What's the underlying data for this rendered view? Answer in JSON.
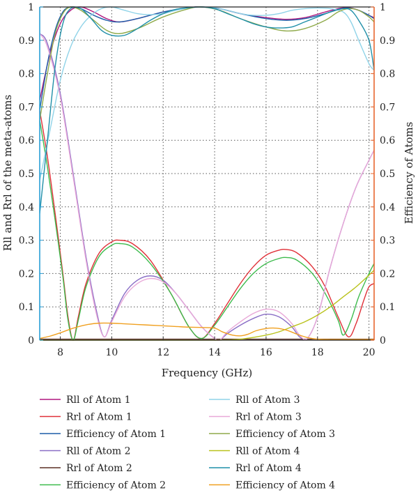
{
  "chart_data": {
    "type": "line",
    "xlabel": "Frequency (GHz)",
    "ylabel_left": "Rll and Rrl of the meta-atoms",
    "ylabel_right": "Efficiency of Atoms",
    "xlim": [
      7.2,
      20.2
    ],
    "ylim": [
      0,
      1
    ],
    "y2lim": [
      0,
      1
    ],
    "x_ticks": [
      "8",
      "10",
      "12",
      "14",
      "16",
      "18",
      "20"
    ],
    "y_ticks": [
      "0",
      "0.1",
      "0.2",
      "0.3",
      "0.4",
      "0.5",
      "0.6",
      "0.7",
      "0.8",
      "0.9",
      "1"
    ],
    "y2_ticks": [
      "0",
      "0.1",
      "0.2",
      "0.3",
      "0.4",
      "0.5",
      "0.6",
      "0.7",
      "0.8",
      "0.9",
      "1"
    ],
    "grid": true,
    "legend_position": "bottom",
    "left_axis_color": "#2a9fd6",
    "right_axis_color": "#e8662e",
    "series": [
      {
        "name": "Rll of Atom 1",
        "color": "#b0177e",
        "x": [
          7.2,
          7.6,
          8.0,
          8.4,
          8.8,
          9.3,
          9.8,
          10.3,
          11.0,
          12.0,
          13.0,
          13.5,
          14.2,
          15.0,
          16.0,
          16.8,
          17.5,
          18.3,
          18.8,
          19.2,
          19.6,
          20.0,
          20.2
        ],
        "y": [
          0.72,
          0.86,
          0.95,
          0.99,
          1.0,
          0.985,
          0.965,
          0.955,
          0.965,
          0.985,
          0.998,
          1.0,
          0.995,
          0.98,
          0.968,
          0.963,
          0.968,
          0.985,
          0.995,
          0.998,
          0.99,
          0.975,
          0.968
        ]
      },
      {
        "name": "Rrl of Atom 1",
        "color": "#e03038",
        "x": [
          7.2,
          7.5,
          7.8,
          8.1,
          8.3,
          8.5,
          8.7,
          9.0,
          9.5,
          10.0,
          10.3,
          10.8,
          11.5,
          12.3,
          13.0,
          13.5,
          14.0,
          14.5,
          15.0,
          15.5,
          16.0,
          16.5,
          16.8,
          17.2,
          17.8,
          18.3,
          18.8,
          19.2,
          19.5,
          19.8,
          20.0,
          20.2
        ],
        "y": [
          0.69,
          0.55,
          0.38,
          0.2,
          0.07,
          0.0,
          0.07,
          0.17,
          0.26,
          0.295,
          0.3,
          0.29,
          0.24,
          0.14,
          0.04,
          0.005,
          0.05,
          0.11,
          0.17,
          0.22,
          0.255,
          0.27,
          0.272,
          0.262,
          0.22,
          0.16,
          0.07,
          0.01,
          0.05,
          0.12,
          0.16,
          0.17
        ]
      },
      {
        "name": "Efficiency of Atom 1",
        "color": "#1c5da8",
        "x": [
          7.2,
          7.5,
          7.8,
          8.1,
          8.4,
          8.8,
          9.3,
          9.8,
          10.3,
          11.0,
          12.0,
          13.0,
          13.5,
          14.2,
          15.0,
          16.0,
          16.8,
          17.5,
          18.3,
          18.8,
          19.2,
          19.6,
          20.0,
          20.2
        ],
        "y": [
          0.69,
          0.83,
          0.93,
          0.985,
          1.0,
          0.995,
          0.975,
          0.96,
          0.955,
          0.965,
          0.985,
          0.998,
          1.0,
          0.995,
          0.98,
          0.965,
          0.96,
          0.965,
          0.98,
          0.993,
          0.997,
          0.99,
          0.975,
          0.965
        ]
      },
      {
        "name": "Rll of Atom 2",
        "color": "#8a6ec6",
        "x": [
          7.2,
          7.5,
          8.0,
          8.5,
          9.0,
          9.4,
          9.7,
          10.0,
          10.5,
          11.0,
          11.5,
          12.0,
          12.5,
          13.0,
          13.5,
          14.0,
          14.2,
          14.5,
          15.0,
          15.5,
          16.0,
          16.5,
          17.0,
          17.3,
          17.6,
          18.0,
          18.5,
          19.0,
          19.5,
          20.0,
          20.2
        ],
        "y": [
          0.92,
          0.89,
          0.74,
          0.5,
          0.25,
          0.09,
          0.01,
          0.06,
          0.14,
          0.18,
          0.193,
          0.18,
          0.14,
          0.09,
          0.04,
          0.005,
          0.0,
          0.02,
          0.045,
          0.065,
          0.078,
          0.07,
          0.04,
          0.01,
          0.005,
          0.07,
          0.22,
          0.35,
          0.46,
          0.54,
          0.57
        ]
      },
      {
        "name": "Rrl of Atom 2",
        "color": "#5a2e24",
        "x": [
          7.2,
          8.0,
          9.0,
          10.0,
          11.0,
          12.0,
          13.0,
          14.0,
          15.0,
          16.0,
          17.0,
          18.0,
          19.0,
          20.0,
          20.2
        ],
        "y": [
          0.003,
          0.003,
          0.003,
          0.003,
          0.003,
          0.003,
          0.003,
          0.003,
          0.003,
          0.003,
          0.003,
          0.003,
          0.003,
          0.003,
          0.003
        ]
      },
      {
        "name": "Efficiency of Atom 2",
        "color": "#3dbb4d",
        "x": [
          7.2,
          7.5,
          7.8,
          8.1,
          8.3,
          8.5,
          8.7,
          9.0,
          9.5,
          10.0,
          10.3,
          10.8,
          11.5,
          12.3,
          13.0,
          13.5,
          14.0,
          14.5,
          15.0,
          15.5,
          16.0,
          16.5,
          16.8,
          17.2,
          17.8,
          18.3,
          18.8,
          19.0,
          19.3,
          19.6,
          20.0,
          20.2
        ],
        "y": [
          0.66,
          0.52,
          0.36,
          0.19,
          0.06,
          0.0,
          0.06,
          0.16,
          0.25,
          0.285,
          0.29,
          0.28,
          0.23,
          0.14,
          0.04,
          0.005,
          0.045,
          0.1,
          0.155,
          0.2,
          0.23,
          0.245,
          0.248,
          0.24,
          0.2,
          0.14,
          0.06,
          0.015,
          0.06,
          0.13,
          0.2,
          0.23
        ]
      },
      {
        "name": "Rll of Atom 3",
        "color": "#8fd3e8",
        "x": [
          7.2,
          7.6,
          8.0,
          8.4,
          8.8,
          9.2,
          9.6,
          10.0,
          10.5,
          11.0,
          11.5,
          12.0,
          12.5,
          13.0,
          13.5,
          14.0,
          14.5,
          15.0,
          15.5,
          16.0,
          16.5,
          17.0,
          17.5,
          18.0,
          18.5,
          19.0,
          19.3,
          19.6,
          20.0,
          20.2
        ],
        "y": [
          0.48,
          0.63,
          0.78,
          0.88,
          0.94,
          0.975,
          0.995,
          1.0,
          0.99,
          0.98,
          0.977,
          0.98,
          0.99,
          0.997,
          1.0,
          0.998,
          0.99,
          0.98,
          0.975,
          0.975,
          0.98,
          0.99,
          0.995,
          0.997,
          0.995,
          0.985,
          0.955,
          0.9,
          0.83,
          0.81
        ]
      },
      {
        "name": "Rrl of Atom 3",
        "color": "#e8a8d8",
        "x": [
          7.2,
          7.5,
          8.0,
          8.5,
          9.0,
          9.4,
          9.7,
          10.0,
          10.5,
          11.0,
          11.5,
          12.0,
          12.5,
          13.0,
          13.5,
          14.0,
          14.2,
          14.5,
          15.0,
          15.5,
          16.0,
          16.5,
          17.0,
          17.3,
          17.6,
          18.0,
          18.5,
          19.0,
          19.5,
          20.0,
          20.2
        ],
        "y": [
          0.92,
          0.88,
          0.73,
          0.49,
          0.24,
          0.08,
          0.01,
          0.055,
          0.13,
          0.17,
          0.185,
          0.175,
          0.14,
          0.09,
          0.04,
          0.005,
          0.0,
          0.025,
          0.055,
          0.08,
          0.093,
          0.085,
          0.05,
          0.015,
          0.005,
          0.07,
          0.22,
          0.35,
          0.46,
          0.54,
          0.57
        ]
      },
      {
        "name": "Efficiency of Atom 3",
        "color": "#8faa4a",
        "x": [
          7.2,
          7.5,
          7.8,
          8.1,
          8.4,
          8.8,
          9.3,
          9.8,
          10.3,
          11.0,
          12.0,
          13.0,
          13.5,
          14.2,
          15.0,
          16.0,
          16.8,
          17.5,
          18.3,
          18.8,
          19.2,
          19.6,
          20.0,
          20.2
        ],
        "y": [
          0.66,
          0.8,
          0.92,
          0.98,
          1.0,
          0.99,
          0.96,
          0.93,
          0.92,
          0.935,
          0.97,
          0.995,
          1.0,
          0.99,
          0.965,
          0.94,
          0.928,
          0.935,
          0.96,
          0.985,
          0.995,
          0.99,
          0.97,
          0.955
        ]
      },
      {
        "name": "Rll of Atom 4",
        "color": "#b9c21b",
        "x": [
          7.2,
          8.0,
          9.0,
          10.0,
          11.0,
          12.0,
          13.0,
          14.0,
          15.0,
          16.0,
          16.5,
          17.0,
          17.5,
          18.0,
          18.5,
          19.0,
          19.5,
          20.0,
          20.2
        ],
        "y": [
          0.0,
          0.0,
          0.0,
          0.0,
          0.0,
          0.0,
          0.0,
          0.0,
          0.003,
          0.015,
          0.025,
          0.04,
          0.055,
          0.075,
          0.1,
          0.13,
          0.16,
          0.195,
          0.21
        ]
      },
      {
        "name": "Rrl of Atom 4",
        "color": "#1f8fa8",
        "x": [
          7.2,
          7.5,
          7.8,
          8.1,
          8.4,
          8.8,
          9.2,
          9.6,
          10.0,
          10.5,
          11.0,
          11.5,
          12.0,
          12.5,
          13.0,
          13.5,
          14.0,
          14.5,
          15.0,
          15.5,
          16.0,
          16.5,
          17.0,
          17.5,
          18.0,
          18.5,
          19.0,
          19.3,
          19.6,
          20.0,
          20.2
        ],
        "y": [
          0.38,
          0.6,
          0.82,
          0.95,
          0.995,
          0.995,
          0.965,
          0.93,
          0.915,
          0.915,
          0.935,
          0.96,
          0.98,
          0.993,
          0.998,
          1.0,
          0.995,
          0.98,
          0.965,
          0.95,
          0.94,
          0.937,
          0.94,
          0.955,
          0.97,
          0.985,
          0.995,
          0.99,
          0.96,
          0.9,
          0.81
        ]
      },
      {
        "name": "Efficiency of Atom 4",
        "color": "#f0a020",
        "x": [
          7.2,
          7.6,
          8.0,
          8.5,
          9.0,
          9.5,
          10.0,
          10.5,
          11.0,
          11.5,
          12.0,
          12.5,
          13.0,
          13.5,
          14.0,
          14.3,
          14.7,
          15.0,
          15.3,
          15.6,
          16.0,
          16.4,
          16.8,
          17.2,
          17.6,
          18.0,
          18.5,
          19.0,
          19.5,
          20.0,
          20.2
        ],
        "y": [
          0.005,
          0.012,
          0.022,
          0.036,
          0.046,
          0.051,
          0.051,
          0.049,
          0.047,
          0.045,
          0.043,
          0.041,
          0.039,
          0.038,
          0.036,
          0.025,
          0.015,
          0.013,
          0.018,
          0.028,
          0.035,
          0.036,
          0.03,
          0.018,
          0.008,
          0.003,
          0.002,
          0.002,
          0.002,
          0.002,
          0.002
        ]
      }
    ]
  }
}
